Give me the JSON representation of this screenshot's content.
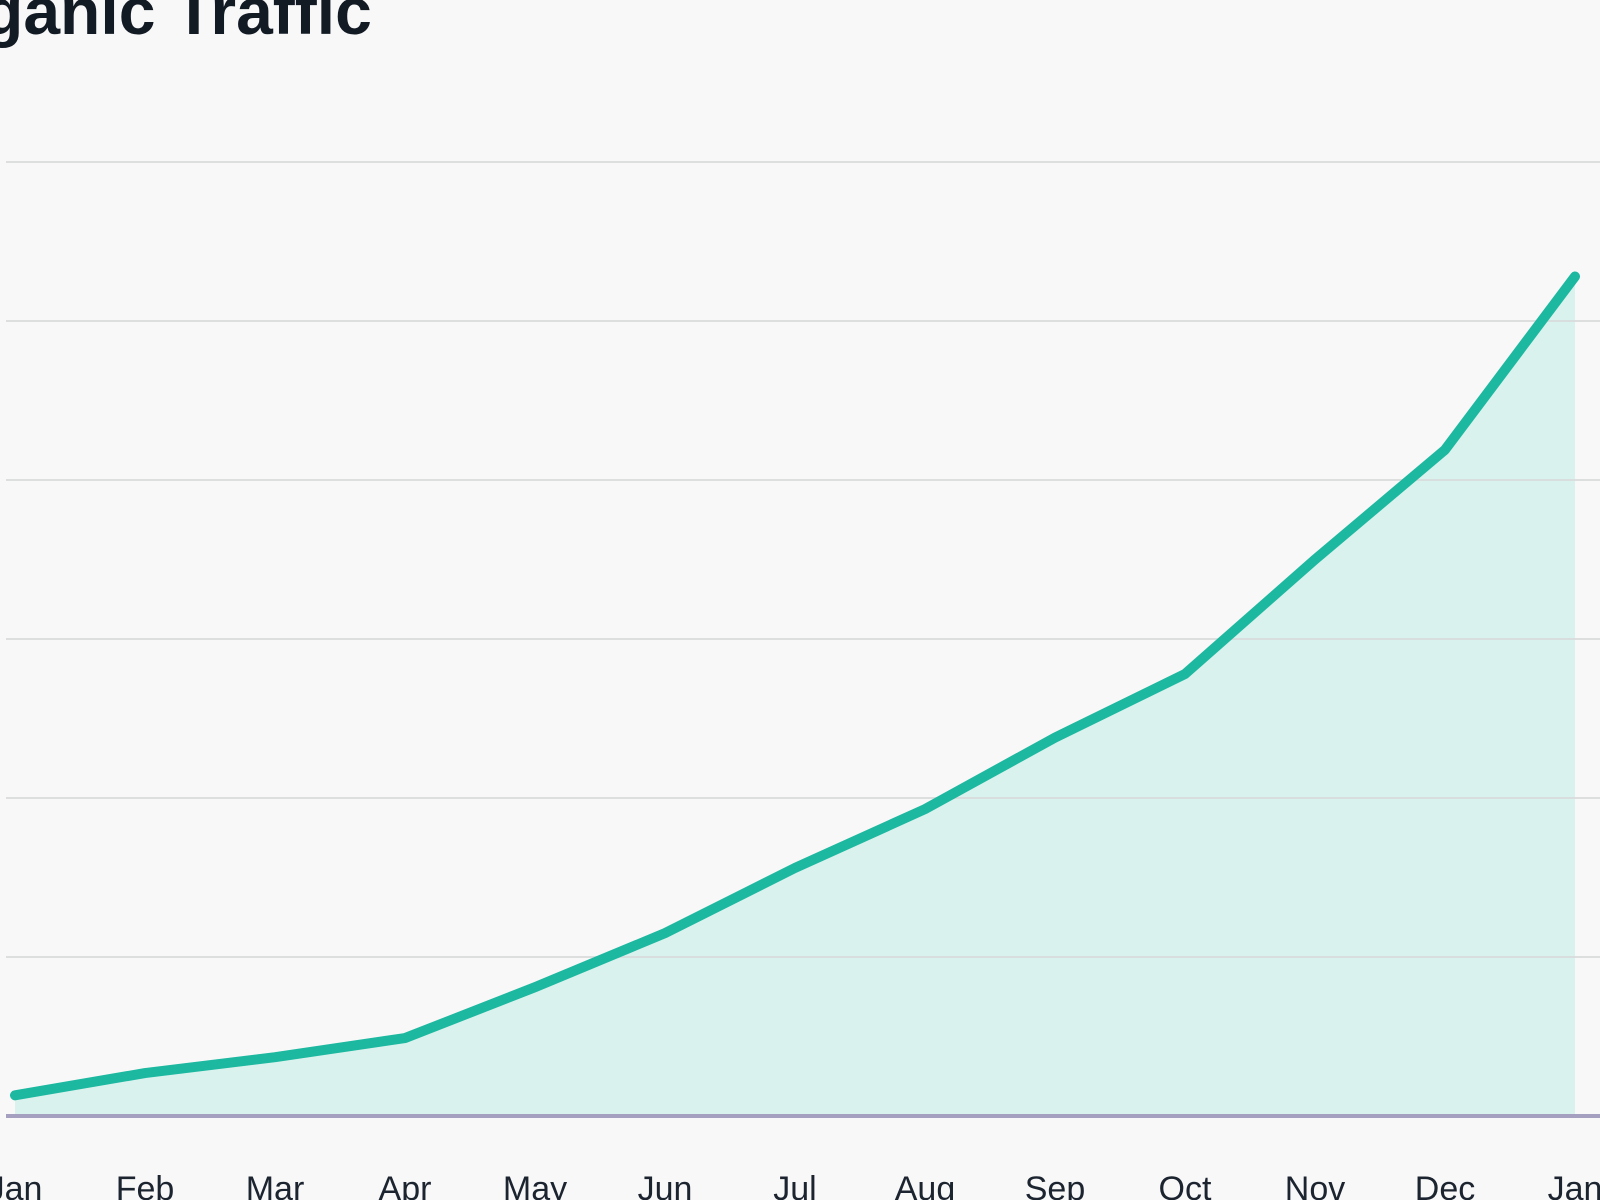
{
  "chart_data": {
    "type": "area-line",
    "title": "Organic Traffic",
    "categories": [
      "Jan",
      "Feb",
      "Mar",
      "Apr",
      "May",
      "Jun",
      "Jul",
      "Aug",
      "Sep",
      "Oct",
      "Nov",
      "Dec",
      "Jan"
    ],
    "values": [
      0.13,
      0.27,
      0.37,
      0.49,
      0.81,
      1.15,
      1.56,
      1.93,
      2.38,
      2.78,
      3.5,
      4.19,
      5.28
    ],
    "color": "#1cb8a0",
    "fill": "#d9f2ed",
    "ylim": [
      0,
      6
    ],
    "yticks": [
      0,
      1,
      2,
      3,
      4,
      5,
      6
    ],
    "grid": true
  }
}
